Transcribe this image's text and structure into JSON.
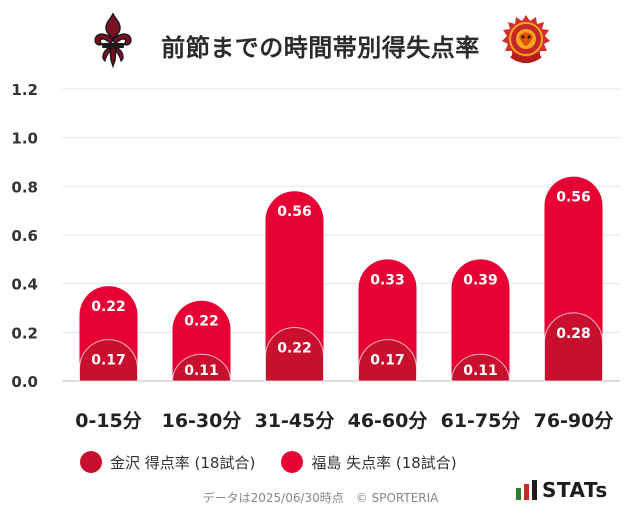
{
  "title": "前節までの時間帯別得失点率",
  "icons": {
    "left_logo": "fleur-de-lis-crest-icon",
    "right_logo": "fukushima-united-crest-icon"
  },
  "chart_data": {
    "type": "bar",
    "categories": [
      "0-15分",
      "16-30分",
      "31-45分",
      "46-60分",
      "61-75分",
      "76-90分"
    ],
    "series": [
      {
        "name": "金沢 得点率 (18試合)",
        "values": [
          0.17,
          0.11,
          0.22,
          0.17,
          0.11,
          0.28
        ],
        "color": "#C8102E"
      },
      {
        "name": "福島 失点率 (18試合)",
        "values": [
          0.22,
          0.22,
          0.56,
          0.33,
          0.39,
          0.56
        ],
        "color": "#E60033"
      }
    ],
    "ylim": [
      0,
      1.2
    ],
    "yticks": [
      "0.0",
      "0.2",
      "0.4",
      "0.6",
      "0.8",
      "1.0",
      "1.2"
    ],
    "stacked": true,
    "grid": true,
    "legend_position": "bottom"
  },
  "footer": "データは2025/06/30時点　© SPORTERIA",
  "brand": "STATs"
}
